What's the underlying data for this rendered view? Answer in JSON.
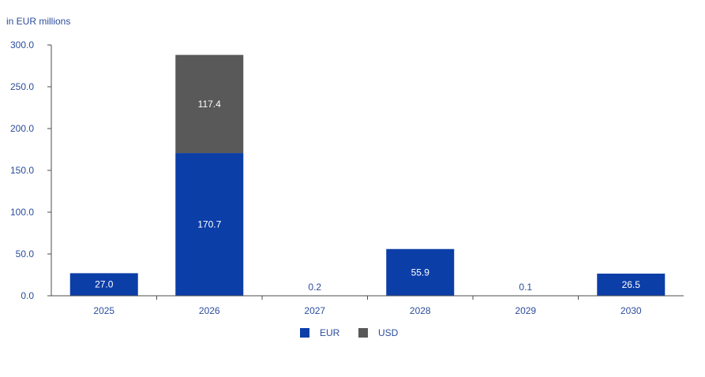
{
  "chart_data": {
    "type": "bar",
    "stacked": true,
    "unit_label": "in EUR millions",
    "categories": [
      "2025",
      "2026",
      "2027",
      "2028",
      "2029",
      "2030"
    ],
    "series": [
      {
        "name": "EUR",
        "color": "#0c3ea8",
        "values": [
          27.0,
          170.7,
          0.2,
          55.9,
          0.1,
          26.5
        ]
      },
      {
        "name": "USD",
        "color": "#595959",
        "values": [
          0,
          117.4,
          0,
          0,
          0,
          0
        ]
      }
    ],
    "data_labels": {
      "EUR": [
        "27.0",
        "170.7",
        "0.2",
        "55.9",
        "0.1",
        "26.5"
      ],
      "USD": [
        "",
        "117.4",
        "",
        "",
        "",
        ""
      ]
    },
    "ylim": [
      0,
      300
    ],
    "y_ticks": [
      "0.0",
      "50.0",
      "100.0",
      "150.0",
      "200.0",
      "250.0",
      "300.0"
    ],
    "grid": false,
    "legend_position": "bottom"
  }
}
